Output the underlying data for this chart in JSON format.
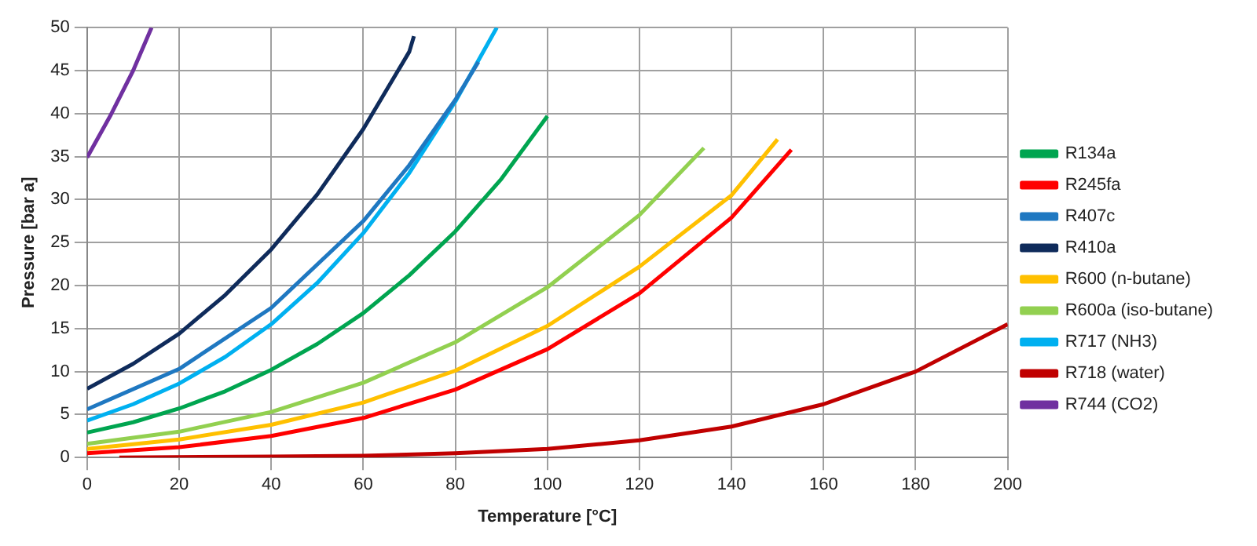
{
  "chart_data": {
    "type": "line",
    "xlabel": "Temperature [°C]",
    "ylabel": "Pressure [bar a]",
    "xlim": [
      0,
      200
    ],
    "xticks": [
      0,
      20,
      40,
      60,
      80,
      100,
      120,
      140,
      160,
      180,
      200
    ],
    "ylim": [
      0,
      50
    ],
    "yticks": [
      0,
      5,
      10,
      15,
      20,
      25,
      30,
      35,
      40,
      45,
      50
    ],
    "grid": true,
    "legend": "right",
    "marker": "none",
    "line_style": "solid",
    "series": [
      {
        "name": "R134a",
        "color": "#00a550",
        "x": [
          0,
          10,
          20,
          30,
          40,
          50,
          60,
          70,
          80,
          90,
          100
        ],
        "values": [
          2.9,
          4.1,
          5.7,
          7.7,
          10.2,
          13.2,
          16.8,
          21.2,
          26.3,
          32.4,
          39.7
        ]
      },
      {
        "name": "R245fa",
        "color": "#ff0000",
        "x": [
          0,
          20,
          40,
          60,
          80,
          100,
          120,
          140,
          153
        ],
        "values": [
          0.5,
          1.2,
          2.5,
          4.6,
          7.9,
          12.6,
          19.1,
          27.9,
          35.8
        ]
      },
      {
        "name": "R407c",
        "color": "#1f78c1",
        "x": [
          0,
          20,
          40,
          60,
          70,
          80,
          85
        ],
        "values": [
          5.6,
          10.3,
          17.4,
          27.5,
          34,
          41.6,
          46
        ]
      },
      {
        "name": "R410a",
        "color": "#0f2b5b",
        "x": [
          0,
          10,
          20,
          30,
          40,
          50,
          60,
          70,
          71
        ],
        "values": [
          8,
          10.9,
          14.4,
          18.9,
          24.2,
          30.6,
          38.2,
          47.2,
          49
        ]
      },
      {
        "name": "R600 (n-butane)",
        "color": "#ffc000",
        "x": [
          0,
          20,
          40,
          60,
          80,
          100,
          120,
          140,
          150
        ],
        "values": [
          1,
          2.1,
          3.8,
          6.4,
          10.1,
          15.3,
          22.2,
          30.5,
          37
        ]
      },
      {
        "name": "R600a (iso-butane)",
        "color": "#92d050",
        "x": [
          0,
          20,
          40,
          60,
          80,
          100,
          120,
          134
        ],
        "values": [
          1.6,
          3,
          5.3,
          8.7,
          13.4,
          19.8,
          28.2,
          36
        ]
      },
      {
        "name": "R717 (NH3)",
        "color": "#00b0f0",
        "x": [
          0,
          10,
          20,
          30,
          40,
          50,
          60,
          70,
          80,
          89
        ],
        "values": [
          4.3,
          6.2,
          8.6,
          11.7,
          15.5,
          20.3,
          26.1,
          33.1,
          41.4,
          50
        ]
      },
      {
        "name": "R718 (water)",
        "color": "#c00000",
        "x": [
          7,
          40,
          60,
          80,
          100,
          120,
          140,
          160,
          180,
          200
        ],
        "values": [
          0,
          0.1,
          0.2,
          0.5,
          1,
          2,
          3.6,
          6.2,
          10,
          15.5
        ]
      },
      {
        "name": "R744 (CO2)",
        "color": "#7030a0",
        "x": [
          0,
          5,
          10,
          14
        ],
        "values": [
          34.9,
          39.7,
          45,
          50
        ]
      }
    ]
  }
}
